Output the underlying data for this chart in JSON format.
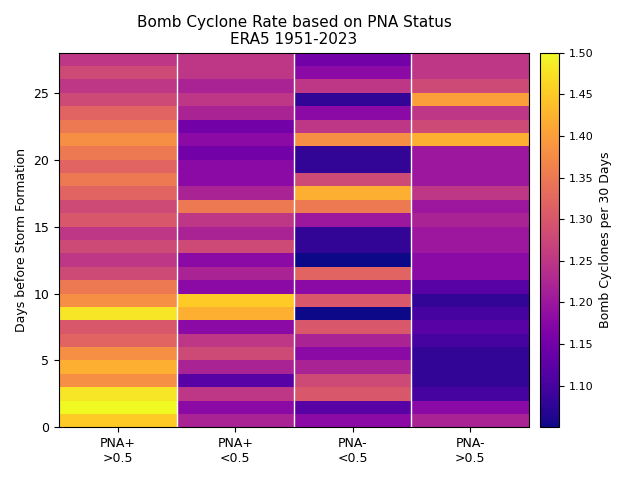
{
  "title_line1": "Bomb Cyclone Rate based on PNA Status",
  "title_line2": "ERA5 1951-2023",
  "xlabel_labels": [
    "PNA+\n>0.5",
    "PNA+\n<0.5",
    "PNA-\n<0.5",
    "PNA-\n>0.5"
  ],
  "ylabel": "Days before Storm Formation",
  "colorbar_label": "Bomb Cyclones per 30 Days",
  "vmin": 1.05,
  "vmax": 1.5,
  "n_days": 28,
  "cmap": "plasma",
  "data": [
    [
      1.45,
      1.22,
      1.18,
      1.22
    ],
    [
      1.5,
      1.18,
      1.12,
      1.18
    ],
    [
      1.48,
      1.25,
      1.3,
      1.1
    ],
    [
      1.38,
      1.12,
      1.28,
      1.08
    ],
    [
      1.42,
      1.22,
      1.22,
      1.08
    ],
    [
      1.38,
      1.28,
      1.18,
      1.08
    ],
    [
      1.32,
      1.25,
      1.22,
      1.1
    ],
    [
      1.3,
      1.18,
      1.3,
      1.12
    ],
    [
      1.48,
      1.42,
      1.05,
      1.1
    ],
    [
      1.38,
      1.45,
      1.3,
      1.08
    ],
    [
      1.35,
      1.18,
      1.18,
      1.12
    ],
    [
      1.28,
      1.22,
      1.32,
      1.18
    ],
    [
      1.25,
      1.18,
      1.05,
      1.18
    ],
    [
      1.28,
      1.28,
      1.08,
      1.2
    ],
    [
      1.25,
      1.22,
      1.08,
      1.2
    ],
    [
      1.3,
      1.25,
      1.2,
      1.22
    ],
    [
      1.28,
      1.35,
      1.35,
      1.2
    ],
    [
      1.32,
      1.22,
      1.42,
      1.25
    ],
    [
      1.35,
      1.18,
      1.28,
      1.2
    ],
    [
      1.32,
      1.18,
      1.08,
      1.2
    ],
    [
      1.35,
      1.15,
      1.08,
      1.2
    ],
    [
      1.38,
      1.18,
      1.38,
      1.42
    ],
    [
      1.35,
      1.15,
      1.25,
      1.28
    ],
    [
      1.32,
      1.22,
      1.18,
      1.25
    ],
    [
      1.28,
      1.25,
      1.08,
      1.4
    ],
    [
      1.25,
      1.22,
      1.25,
      1.28
    ],
    [
      1.28,
      1.25,
      1.18,
      1.25
    ],
    [
      1.25,
      1.25,
      1.15,
      1.25
    ]
  ]
}
